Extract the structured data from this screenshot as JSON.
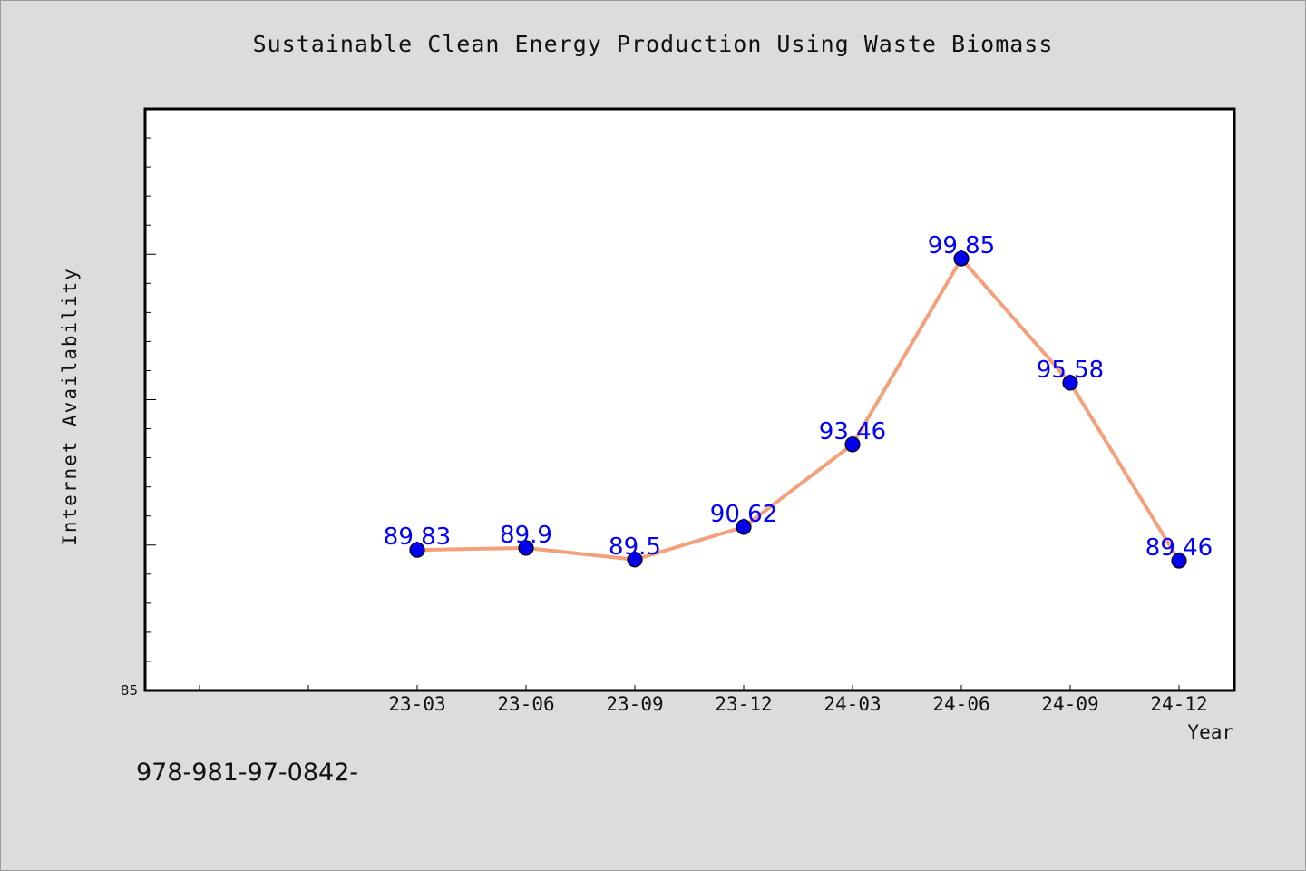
{
  "chart_data": {
    "type": "line",
    "title": "Sustainable Clean Energy Production Using Waste Biomass",
    "xlabel": "Year",
    "ylabel": "Internet Availability",
    "categories": [
      "23-03",
      "23-06",
      "23-09",
      "23-12",
      "24-03",
      "24-06",
      "24-09",
      "24-12"
    ],
    "series": [
      {
        "values": [
          89.83,
          89.9,
          89.5,
          90.62,
          93.46,
          99.85,
          95.58,
          89.46
        ]
      }
    ],
    "data_labels": [
      "89.83",
      "89.9",
      "89.5",
      "90.62",
      "93.46",
      "99.85",
      "95.58",
      "89.46"
    ],
    "ylim": [
      85,
      105
    ],
    "y_tick_labels": [
      "85"
    ],
    "grid": false,
    "legend": "none",
    "line_color": "#f4a07a",
    "marker_color": "#0000ee",
    "label_color": "#0000ff"
  },
  "footer": {
    "text": "978-981-97-0842-"
  }
}
